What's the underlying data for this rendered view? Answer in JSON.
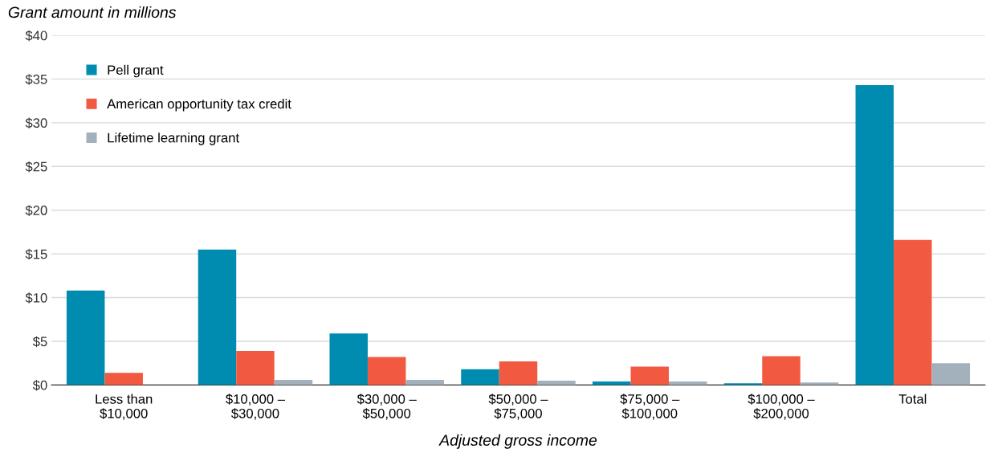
{
  "chart_data": {
    "type": "bar",
    "ylabel": "Grant amount in millions",
    "xlabel": "Adjusted gross income",
    "categories": [
      "Less than\n$10,000",
      "$10,000 –\n$30,000",
      "$30,000 –\n$50,000",
      "$50,000 –\n$75,000",
      "$75,000 –\n$100,000",
      "$100,000 –\n$200,000",
      "Total"
    ],
    "series": [
      {
        "name": "Pell grant",
        "color": "#008cb0",
        "values": [
          10.8,
          15.5,
          5.9,
          1.8,
          0.4,
          0.2,
          34.3
        ]
      },
      {
        "name": "American opportunity tax credit",
        "color": "#f15a40",
        "values": [
          1.4,
          3.9,
          3.2,
          2.7,
          2.1,
          3.3,
          16.6
        ]
      },
      {
        "name": "Lifetime learning grant",
        "color": "#a3b1bd",
        "values": [
          0,
          0.6,
          0.6,
          0.5,
          0.4,
          0.3,
          2.5
        ]
      }
    ],
    "ylim": [
      0,
      40
    ],
    "yticks": [
      {
        "value": 0,
        "label": "$0"
      },
      {
        "value": 5,
        "label": "$5"
      },
      {
        "value": 10,
        "label": "$10"
      },
      {
        "value": 15,
        "label": "$15"
      },
      {
        "value": 20,
        "label": "$20"
      },
      {
        "value": 25,
        "label": "$25"
      },
      {
        "value": 30,
        "label": "$30"
      },
      {
        "value": 35,
        "label": "$35"
      },
      {
        "value": 40,
        "label": "$40"
      }
    ],
    "grid": "y",
    "legend": "top left"
  }
}
